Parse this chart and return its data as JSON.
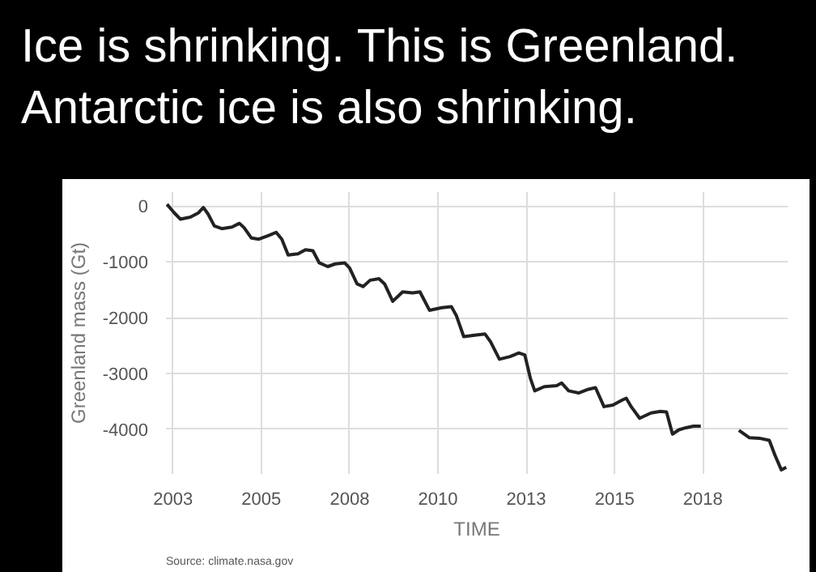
{
  "chart_data": {
    "type": "line",
    "title": "Ice is shrinking. This is Greenland. Antarctic ice is also shrinking.",
    "xlabel": "TIME",
    "ylabel": "Greenland mass (Gt)",
    "annotations": [
      "Source: climate.nasa.gov"
    ],
    "x": [
      2002.33,
      2002.53,
      2002.71,
      2002.99,
      2003.22,
      2003.36,
      2003.49,
      2003.67,
      2003.88,
      2004.17,
      2004.38,
      2004.51,
      2004.72,
      2004.93,
      2005.21,
      2005.42,
      2005.58,
      2005.76,
      2006.04,
      2006.25,
      2006.46,
      2006.64,
      2006.88,
      2007.09,
      2007.36,
      2007.5,
      2007.71,
      2007.88,
      2008.08,
      2008.33,
      2008.49,
      2008.72,
      2009.0,
      2009.28,
      2009.49,
      2009.76,
      2010.11,
      2010.38,
      2010.52,
      2010.73,
      2011.08,
      2011.33,
      2011.49,
      2011.74,
      2012.04,
      2012.29,
      2012.46,
      2012.62,
      2012.74,
      2013.01,
      2013.36,
      2013.5,
      2013.7,
      2013.98,
      2014.26,
      2014.46,
      2014.7,
      2014.95,
      2015.23,
      2015.33,
      2015.47,
      2015.71,
      2016.03,
      2016.3,
      2016.47,
      2016.64,
      2016.82,
      2017.02,
      2017.23,
      2017.44,
      2018.0,
      2018.52,
      2018.82,
      2019.1,
      2019.38,
      2019.54,
      2019.72,
      2019.86
    ],
    "series": [
      {
        "color": "#222222",
        "values": [
          30,
          -120,
          -236,
          -200,
          -123,
          -28,
          -142,
          -358,
          -406,
          -377,
          -311,
          -387,
          -575,
          -594,
          -528,
          -472,
          -594,
          -877,
          -858,
          -783,
          -802,
          -1019,
          -1085,
          -1038,
          -1019,
          -1113,
          -1396,
          -1443,
          -1330,
          -1302,
          -1396,
          -1708,
          -1538,
          -1557,
          -1538,
          -1868,
          -1821,
          -1802,
          -1962,
          -2340,
          -2311,
          -2292,
          -2434,
          -2745,
          -2698,
          -2632,
          -2670,
          -3094,
          -3311,
          -3236,
          -3217,
          -3170,
          -3311,
          -3349,
          -3283,
          -3255,
          -3594,
          -3566,
          -3472,
          -3443,
          -3594,
          -3802,
          -3708,
          -3679,
          -3689,
          -4085,
          -4009,
          -3972,
          -3943,
          -3943,
          null,
          -4019,
          -4151,
          -4160,
          -4198,
          -4462,
          -4726,
          -4679
        ]
      }
    ],
    "xlim": [
      2002.3,
      2019.9
    ],
    "ylim": [
      -4800,
      250
    ],
    "xticks": [
      {
        "value": 2002.5,
        "label": "2003"
      },
      2005,
      {
        "value": 2007.5,
        "label": "2008"
      },
      2010,
      {
        "value": 2012.5,
        "label": "2013"
      },
      2015,
      {
        "value": 2017.5,
        "label": "2018"
      }
    ],
    "yticks": [
      0,
      -1000,
      -2000,
      -3000,
      -4000
    ],
    "grid": true
  }
}
